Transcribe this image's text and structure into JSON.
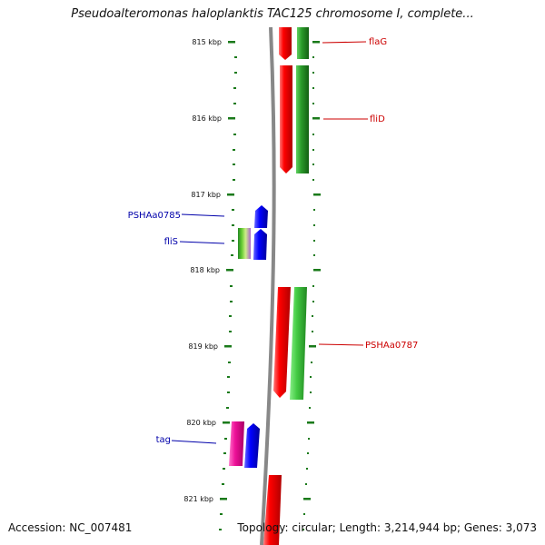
{
  "title": "Pseudoalteromonas haloplanktis TAC125 chromosome I, complete...",
  "accession": "Accession: NC_007481",
  "stats": "Topology: circular; Length: 3,214,944 bp; Genes: 3,073",
  "ticks": [
    "815 kbp",
    "816 kbp",
    "817 kbp",
    "818 kbp",
    "819 kbp",
    "820 kbp",
    "821 kbp"
  ],
  "gene_labels": {
    "flaG": "flaG",
    "fliD": "fliD",
    "PSHAa0785": "PSHAa0785",
    "fliS": "fliS",
    "PSHAa0787": "PSHAa0787",
    "tag": "tag"
  },
  "colors": {
    "red": "#ff0000",
    "dark_red": "#b00000",
    "green": "#2a9a2a",
    "light_green": "#44cc44",
    "blue": "#0000ff",
    "magenta": "#ee1199",
    "tick_green": "#1a7a1a",
    "backbone": "#888888",
    "label_red": "#cc0000",
    "label_blue": "#0000aa"
  }
}
